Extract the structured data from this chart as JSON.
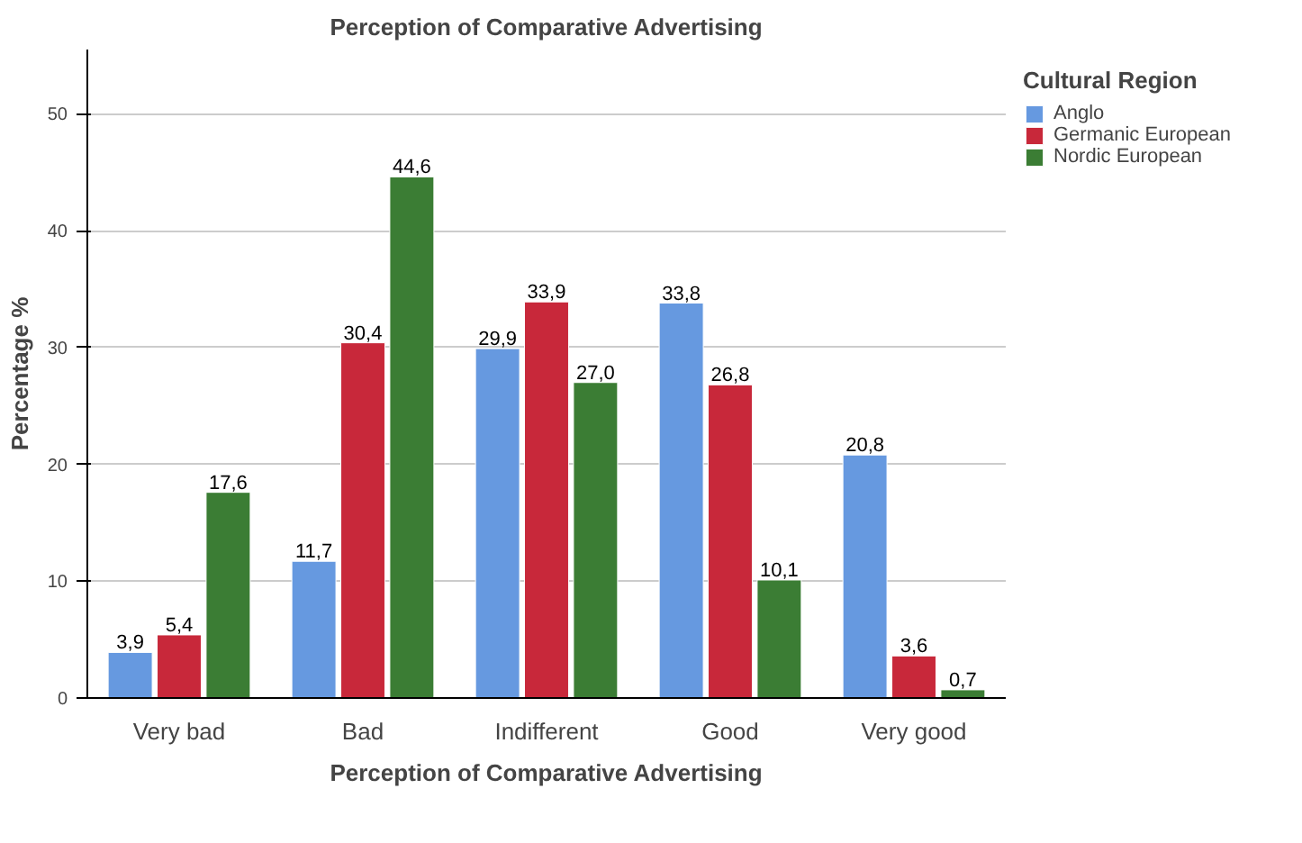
{
  "chart_data": {
    "type": "bar",
    "title": "Perception of Comparative Advertising",
    "xlabel": "Perception of Comparative Advertising",
    "ylabel": "Percentage %",
    "legend_title": "Cultural Region",
    "categories": [
      "Very bad",
      "Bad",
      "Indifferent",
      "Good",
      "Very good"
    ],
    "series": [
      {
        "name": "Anglo",
        "color": "#6699e0",
        "values": [
          3.9,
          11.7,
          29.9,
          33.8,
          20.8
        ],
        "value_labels": [
          "3,9",
          "11,7",
          "29,9",
          "33,8",
          "20,8"
        ]
      },
      {
        "name": "Germanic European",
        "color": "#c8283a",
        "values": [
          5.4,
          30.4,
          33.9,
          26.8,
          3.6
        ],
        "value_labels": [
          "5,4",
          "30,4",
          "33,9",
          "26,8",
          "3,6"
        ]
      },
      {
        "name": "Nordic European",
        "color": "#3b7d34",
        "values": [
          17.6,
          44.6,
          27.0,
          10.1,
          0.7
        ],
        "value_labels": [
          "17,6",
          "44,6",
          "27,0",
          "10,1",
          "0,7"
        ]
      }
    ],
    "ylim": [
      0,
      55.5
    ],
    "yticks": [
      0,
      10,
      20,
      30,
      40,
      50
    ],
    "grid": "y",
    "legend": "top right"
  }
}
